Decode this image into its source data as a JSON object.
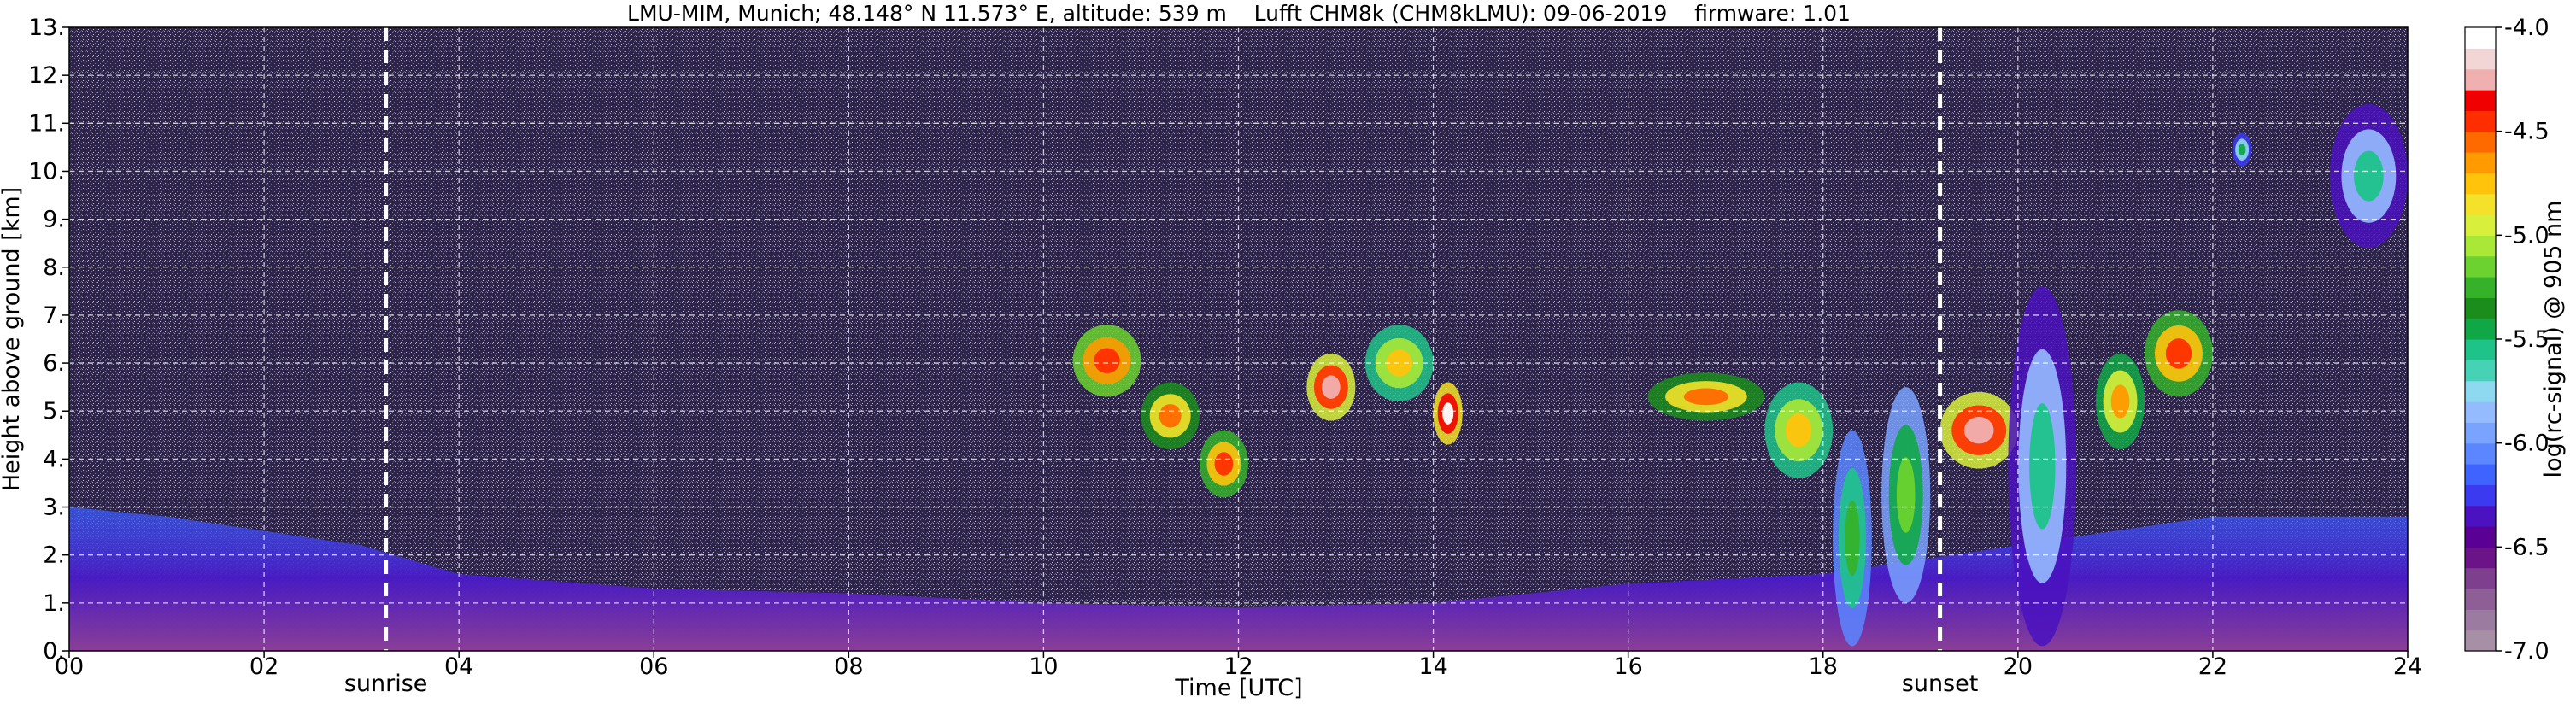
{
  "chart_data": {
    "type": "heatmap",
    "title": "LMU-MIM, Munich; 48.148° N 11.573° E, altitude: 539 m    Lufft CHM8k (CHM8kLMU): 09-06-2019    firmware: 1.01",
    "xlabel": "Time [UTC]",
    "ylabel": "Height above ground [km]",
    "colorbar_label": "log(rc-signal) @ 905 nm",
    "xlim": [
      0,
      24
    ],
    "ylim": [
      0,
      13
    ],
    "x_ticks": [
      0,
      2,
      4,
      6,
      8,
      10,
      12,
      14,
      16,
      18,
      20,
      22,
      24
    ],
    "x_tick_labels": [
      "00",
      "02",
      "04",
      "06",
      "08",
      "10",
      "12",
      "14",
      "16",
      "18",
      "20",
      "22",
      "24"
    ],
    "y_ticks": [
      0,
      1,
      2,
      3,
      4,
      5,
      6,
      7,
      8,
      9,
      10,
      11,
      12,
      13
    ],
    "y_tick_labels": [
      "0.",
      "1.",
      "2.",
      "3.",
      "4.",
      "5.",
      "6.",
      "7.",
      "8.",
      "9.",
      "10.",
      "11.",
      "12.",
      "13."
    ],
    "grid": true,
    "colorbar": {
      "range": [
        -7.0,
        -4.0
      ],
      "tick_values": [
        -4.0,
        -4.5,
        -5.0,
        -5.5,
        -6.0,
        -6.5,
        -7.0
      ],
      "tick_labels": [
        "-4.0",
        "-4.5",
        "-5.0",
        "-5.5",
        "-6.0",
        "-6.5",
        "-7.0"
      ],
      "colors_bottom_to_top": [
        "#a78fa6",
        "#9c7ba0",
        "#8d5f96",
        "#7e3f8e",
        "#6b1488",
        "#5a0094",
        "#4a12c0",
        "#3b3af0",
        "#3f63ff",
        "#5c86ff",
        "#7aa2ff",
        "#95bbff",
        "#8ed9f0",
        "#46d2b4",
        "#1ec38a",
        "#10a846",
        "#1a8d1c",
        "#35b22a",
        "#6bd22f",
        "#a9e837",
        "#d8f03b",
        "#f4e22a",
        "#ffc30c",
        "#ff9a00",
        "#ff6a00",
        "#ff2e00",
        "#f00000",
        "#f0b0b0",
        "#f2d6d6",
        "#ffffff"
      ]
    },
    "markers": [
      {
        "time": 3.25,
        "label": "sunrise"
      },
      {
        "time": 19.2,
        "label": "sunset"
      }
    ],
    "boundary_layer": [
      {
        "x": 0,
        "top": 3.0
      },
      {
        "x": 1,
        "top": 2.8
      },
      {
        "x": 2,
        "top": 2.5
      },
      {
        "x": 3,
        "top": 2.2
      },
      {
        "x": 4,
        "top": 1.6
      },
      {
        "x": 6,
        "top": 1.3
      },
      {
        "x": 8,
        "top": 1.2
      },
      {
        "x": 10,
        "top": 1.0
      },
      {
        "x": 12,
        "top": 0.9
      },
      {
        "x": 14,
        "top": 1.0
      },
      {
        "x": 16,
        "top": 1.4
      },
      {
        "x": 18,
        "top": 1.6
      },
      {
        "x": 20,
        "top": 2.2
      },
      {
        "x": 22,
        "top": 2.8
      },
      {
        "x": 24,
        "top": 2.8
      }
    ],
    "cloud_layers": [
      {
        "x0": 10.3,
        "x1": 11.0,
        "y0": 5.3,
        "y1": 6.8,
        "level": -4.4
      },
      {
        "x0": 11.0,
        "x1": 11.6,
        "y0": 4.2,
        "y1": 5.6,
        "level": -4.6
      },
      {
        "x0": 11.6,
        "x1": 12.1,
        "y0": 3.2,
        "y1": 4.6,
        "level": -4.5
      },
      {
        "x0": 12.7,
        "x1": 13.2,
        "y0": 4.8,
        "y1": 6.2,
        "level": -4.2
      },
      {
        "x0": 13.3,
        "x1": 14.0,
        "y0": 5.2,
        "y1": 6.8,
        "level": -4.8
      },
      {
        "x0": 14.0,
        "x1": 14.3,
        "y0": 4.3,
        "y1": 5.6,
        "level": -4.1
      },
      {
        "x0": 16.2,
        "x1": 17.4,
        "y0": 4.8,
        "y1": 5.8,
        "level": -4.6
      },
      {
        "x0": 17.4,
        "x1": 18.1,
        "y0": 3.6,
        "y1": 5.6,
        "level": -4.8
      },
      {
        "x0": 18.1,
        "x1": 18.5,
        "y0": 0.1,
        "y1": 4.6,
        "level": -5.3
      },
      {
        "x0": 18.6,
        "x1": 19.1,
        "y0": 1.0,
        "y1": 5.5,
        "level": -5.2
      },
      {
        "x0": 19.2,
        "x1": 20.0,
        "y0": 3.8,
        "y1": 5.4,
        "level": -4.2
      },
      {
        "x0": 19.9,
        "x1": 20.6,
        "y0": 0.1,
        "y1": 7.6,
        "level": -5.6
      },
      {
        "x0": 20.8,
        "x1": 21.3,
        "y0": 4.2,
        "y1": 6.2,
        "level": -4.7
      },
      {
        "x0": 21.3,
        "x1": 22.0,
        "y0": 5.3,
        "y1": 7.1,
        "level": -4.5
      },
      {
        "x0": 22.2,
        "x1": 22.4,
        "y0": 10.1,
        "y1": 10.8,
        "level": -5.4
      },
      {
        "x0": 23.2,
        "x1": 24.0,
        "y0": 8.4,
        "y1": 11.4,
        "level": -5.6
      }
    ]
  }
}
